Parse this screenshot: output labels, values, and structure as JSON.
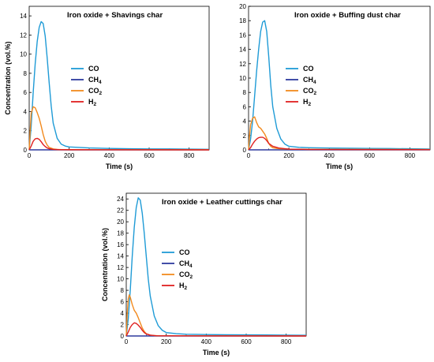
{
  "chart_data": [
    {
      "type": "line",
      "title": "Iron oxide + Shavings char",
      "xlabel": "Time (s)",
      "ylabel": "Concentration (vol.%)",
      "xlim": [
        0,
        900
      ],
      "ylim": [
        0,
        15
      ],
      "xticks": [
        0,
        200,
        400,
        600,
        800
      ],
      "yticks": [
        0,
        2,
        4,
        6,
        8,
        10,
        12,
        14
      ],
      "legend_position": "center-left",
      "series": [
        {
          "name": "CO",
          "color": "#1f9bd6",
          "x": [
            0,
            10,
            20,
            30,
            40,
            50,
            60,
            70,
            80,
            90,
            100,
            110,
            120,
            140,
            160,
            180,
            200,
            250,
            300,
            400,
            500,
            600,
            700,
            800,
            900
          ],
          "y": [
            0,
            2.5,
            6.0,
            9.0,
            11.3,
            12.8,
            13.4,
            13.2,
            11.9,
            9.6,
            7.0,
            4.6,
            2.8,
            1.2,
            0.6,
            0.4,
            0.3,
            0.25,
            0.2,
            0.15,
            0.12,
            0.1,
            0.1,
            0.08,
            0.06
          ]
        },
        {
          "name": "CH4",
          "color": "#2e3a9e",
          "x": [
            0,
            300,
            600,
            900
          ],
          "y": [
            0,
            0,
            0,
            0
          ]
        },
        {
          "name": "CO2",
          "color": "#f28a1e",
          "x": [
            0,
            5,
            10,
            20,
            30,
            40,
            50,
            60,
            70,
            80,
            90,
            100,
            120,
            140,
            160,
            200,
            900
          ],
          "y": [
            0,
            2.0,
            3.8,
            4.5,
            4.4,
            3.9,
            3.3,
            2.5,
            1.6,
            0.9,
            0.5,
            0.25,
            0.1,
            0.05,
            0.03,
            0.02,
            0.01
          ]
        },
        {
          "name": "H2",
          "color": "#e02020",
          "x": [
            0,
            10,
            20,
            30,
            40,
            50,
            60,
            70,
            80,
            90,
            100,
            120,
            150,
            200,
            900
          ],
          "y": [
            0,
            0.4,
            0.9,
            1.15,
            1.2,
            1.1,
            0.85,
            0.55,
            0.35,
            0.2,
            0.12,
            0.05,
            0.02,
            0.01,
            0
          ]
        }
      ]
    },
    {
      "type": "line",
      "title": "Iron oxide + Buffing dust char",
      "xlabel": "Time (s)",
      "ylabel": "",
      "xlim": [
        0,
        900
      ],
      "ylim": [
        0,
        20
      ],
      "xticks": [
        0,
        200,
        400,
        600,
        800
      ],
      "yticks": [
        0,
        2,
        4,
        6,
        8,
        10,
        12,
        14,
        16,
        18,
        20
      ],
      "legend_position": "center-right",
      "series": [
        {
          "name": "CO",
          "color": "#1f9bd6",
          "x": [
            0,
            10,
            20,
            30,
            40,
            50,
            60,
            70,
            80,
            90,
            100,
            110,
            120,
            140,
            160,
            180,
            200,
            250,
            300,
            400,
            500,
            600,
            700,
            800,
            900
          ],
          "y": [
            0,
            1.5,
            4.0,
            7.5,
            11.0,
            14.0,
            16.5,
            17.8,
            18.0,
            16.5,
            13.0,
            9.0,
            6.0,
            3.0,
            1.5,
            0.8,
            0.5,
            0.35,
            0.3,
            0.25,
            0.22,
            0.2,
            0.18,
            0.15,
            0.12
          ]
        },
        {
          "name": "CH4",
          "color": "#2e3a9e",
          "x": [
            0,
            300,
            600,
            900
          ],
          "y": [
            0,
            0,
            0,
            0
          ]
        },
        {
          "name": "CO2",
          "color": "#f28a1e",
          "x": [
            0,
            5,
            10,
            20,
            30,
            40,
            50,
            60,
            70,
            80,
            90,
            100,
            110,
            120,
            140,
            160,
            200,
            300,
            900
          ],
          "y": [
            0,
            2.0,
            3.5,
            4.4,
            4.6,
            3.8,
            3.2,
            3.0,
            2.6,
            2.2,
            1.6,
            0.9,
            0.5,
            0.3,
            0.2,
            0.15,
            0.1,
            0.08,
            0.05
          ]
        },
        {
          "name": "H2",
          "color": "#e02020",
          "x": [
            0,
            10,
            20,
            30,
            40,
            50,
            60,
            70,
            80,
            90,
            100,
            120,
            150,
            200,
            300,
            900
          ],
          "y": [
            0,
            0.3,
            0.8,
            1.2,
            1.5,
            1.7,
            1.75,
            1.75,
            1.6,
            1.3,
            0.9,
            0.5,
            0.25,
            0.1,
            0.05,
            0.02
          ]
        }
      ]
    },
    {
      "type": "line",
      "title": "Iron oxide + Leather cuttings char",
      "xlabel": "Time (s)",
      "ylabel": "Concentration (vol.%)",
      "xlim": [
        0,
        900
      ],
      "ylim": [
        0,
        25
      ],
      "xticks": [
        0,
        200,
        400,
        600,
        800
      ],
      "yticks": [
        0,
        2,
        4,
        6,
        8,
        10,
        12,
        14,
        16,
        18,
        20,
        22,
        24
      ],
      "legend_position": "center-left",
      "series": [
        {
          "name": "CO",
          "color": "#1f9bd6",
          "x": [
            0,
            10,
            20,
            30,
            40,
            50,
            60,
            70,
            80,
            90,
            100,
            110,
            120,
            140,
            160,
            180,
            200,
            250,
            300,
            400,
            500,
            600,
            700,
            800,
            900
          ],
          "y": [
            0,
            3.0,
            8.0,
            14.0,
            19.0,
            22.5,
            24.2,
            23.8,
            21.5,
            18.0,
            14.0,
            10.0,
            7.0,
            3.5,
            1.8,
            1.0,
            0.6,
            0.4,
            0.3,
            0.25,
            0.22,
            0.2,
            0.18,
            0.15,
            0.12
          ]
        },
        {
          "name": "CH4",
          "color": "#2e3a9e",
          "x": [
            0,
            300,
            600,
            900
          ],
          "y": [
            0,
            0,
            0,
            0
          ]
        },
        {
          "name": "CO2",
          "color": "#f28a1e",
          "x": [
            0,
            5,
            10,
            15,
            20,
            30,
            40,
            50,
            60,
            70,
            80,
            90,
            100,
            120,
            140,
            160,
            200,
            900
          ],
          "y": [
            0,
            4.0,
            6.5,
            7.2,
            6.8,
            5.5,
            4.5,
            4.0,
            3.2,
            2.3,
            1.4,
            0.8,
            0.4,
            0.15,
            0.08,
            0.05,
            0.03,
            0.01
          ]
        },
        {
          "name": "H2",
          "color": "#e02020",
          "x": [
            0,
            10,
            20,
            30,
            40,
            50,
            60,
            70,
            80,
            90,
            100,
            120,
            150,
            200,
            900
          ],
          "y": [
            0,
            0.7,
            1.5,
            2.0,
            2.3,
            2.2,
            1.9,
            1.5,
            1.0,
            0.6,
            0.35,
            0.15,
            0.05,
            0.02,
            0
          ]
        }
      ]
    }
  ]
}
